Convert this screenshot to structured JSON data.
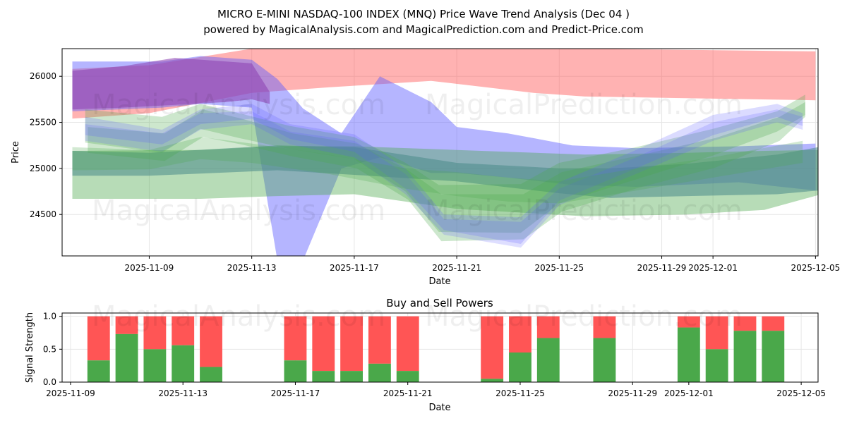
{
  "title_line1": "MICRO E-MINI NASDAQ-100 INDEX (MNQ) Price Wave Trend Analysis (Dec 04 )",
  "title_line2": "powered by MagicalAnalysis.com and MagicalPrediction.com and Predict-Price.com",
  "watermarks": [
    "MagicalAnalysis.com",
    "MagicalPrediction.com"
  ],
  "colors": {
    "red": "#ff5555",
    "green": "#4aa84a",
    "blue": "#5a5aff",
    "grid": "#e6e6e6"
  },
  "chart_data": [
    {
      "type": "area",
      "title": "",
      "xlabel": "Date",
      "ylabel": "Price",
      "x_tick_labels": [
        "2025-11-09",
        "2025-11-13",
        "2025-11-17",
        "2025-11-21",
        "2025-11-25",
        "2025-11-29",
        "2025-12-01",
        "2025-12-05"
      ],
      "x_tick_days": [
        3,
        7,
        11,
        15,
        19,
        23,
        25,
        29
      ],
      "x_origin": "2025-11-06",
      "xlim": [
        -0.4,
        29.1
      ],
      "ylim": [
        24050,
        26300
      ],
      "y_ticks": [
        24500,
        25000,
        25500,
        26000
      ],
      "bands": [
        {
          "color": "red",
          "opacity": 0.45,
          "x": [
            0,
            3,
            7,
            10,
            14,
            18,
            20,
            29
          ],
          "upper": [
            26080,
            26120,
            26300,
            26300,
            26300,
            26300,
            26300,
            26270
          ],
          "lower": [
            25540,
            25600,
            25820,
            25880,
            25950,
            25820,
            25780,
            25740
          ]
        },
        {
          "color": "blue",
          "opacity": 0.45,
          "x": [
            0,
            3.5,
            5,
            7,
            8,
            9,
            10.5,
            12,
            14,
            15,
            17,
            19.5,
            22,
            26,
            29
          ],
          "upper": [
            26160,
            26160,
            26220,
            26180,
            25970,
            25650,
            25380,
            26000,
            25720,
            25450,
            25380,
            25250,
            25220,
            25240,
            25270
          ],
          "lower": [
            25620,
            25660,
            25700,
            25660,
            24000,
            24000,
            25000,
            25120,
            24950,
            24950,
            24900,
            24820,
            24800,
            24850,
            24760
          ]
        },
        {
          "color": "purple",
          "opacity": 0.55,
          "x": [
            0,
            2,
            4,
            6,
            7,
            7.7
          ],
          "upper": [
            26060,
            26110,
            26200,
            26160,
            26140,
            25830
          ],
          "lower": [
            25640,
            25660,
            25690,
            25720,
            25750,
            25700
          ]
        },
        {
          "color": "green",
          "opacity": 0.4,
          "x": [
            0,
            5,
            8,
            11,
            15,
            20,
            24,
            27,
            29.1
          ],
          "upper": [
            25190,
            25200,
            25240,
            25240,
            25200,
            25150,
            25170,
            25190,
            25200
          ],
          "lower": [
            24670,
            24670,
            24700,
            24720,
            24560,
            24480,
            24500,
            24550,
            24710
          ]
        },
        {
          "color": "teal",
          "opacity": 0.55,
          "x": [
            0,
            3,
            8,
            11,
            15,
            19,
            21,
            24,
            27.5,
            29.1
          ],
          "upper": [
            25190,
            25170,
            25250,
            25230,
            25060,
            25000,
            25000,
            25050,
            25150,
            25230
          ],
          "lower": [
            24920,
            24920,
            24980,
            24930,
            24860,
            24730,
            24680,
            24700,
            24720,
            24760
          ]
        },
        {
          "color": "green",
          "opacity": 0.28,
          "x": [
            0.5,
            3.5,
            5,
            6.5,
            8.5,
            11,
            13,
            14.3,
            17.5,
            19,
            22,
            25,
            27.5,
            28.6
          ],
          "upper": [
            25640,
            25560,
            25700,
            25600,
            25460,
            25340,
            25060,
            24820,
            24830,
            25060,
            25230,
            25430,
            25620,
            25800
          ],
          "lower": [
            25280,
            25170,
            25430,
            25330,
            25210,
            25100,
            24750,
            24310,
            24300,
            24620,
            24880,
            25140,
            25400,
            25580
          ]
        },
        {
          "color": "green",
          "opacity": 0.28,
          "x": [
            0.6,
            3.6,
            5.1,
            6.6,
            8.6,
            11.1,
            13.1,
            14.4,
            17.6,
            19.1,
            22.1,
            25.1,
            27.6,
            28.6
          ],
          "upper": [
            25450,
            25380,
            25640,
            25540,
            25380,
            25270,
            24980,
            24720,
            24720,
            24960,
            25140,
            25330,
            25560,
            25720
          ],
          "lower": [
            25170,
            25080,
            25340,
            25260,
            25130,
            25000,
            24660,
            24210,
            24230,
            24530,
            24790,
            25010,
            25300,
            25560
          ]
        },
        {
          "color": "blue",
          "opacity": 0.22,
          "x": [
            0.5,
            3.5,
            5,
            7,
            8.5,
            11,
            13,
            14.5,
            17.5,
            19,
            22,
            25,
            27.5,
            28.5
          ],
          "upper": [
            25560,
            25420,
            25640,
            25700,
            25480,
            25370,
            25000,
            24500,
            24470,
            24850,
            25200,
            25580,
            25700,
            25600
          ],
          "lower": [
            25360,
            25260,
            25480,
            25540,
            25320,
            25180,
            24780,
            24330,
            24180,
            24650,
            25000,
            25360,
            25560,
            25460
          ]
        },
        {
          "color": "blue",
          "opacity": 0.2,
          "x": [
            0.5,
            3.5,
            5,
            7,
            8.5,
            11,
            13,
            14.5,
            17.5,
            19,
            22,
            25,
            27.5,
            28.5
          ],
          "upper": [
            25480,
            25380,
            25600,
            25620,
            25400,
            25300,
            24940,
            24450,
            24420,
            24780,
            25120,
            25500,
            25640,
            25560
          ],
          "lower": [
            25300,
            25180,
            25420,
            25480,
            25260,
            25120,
            24720,
            24280,
            24140,
            24600,
            24940,
            25300,
            25500,
            25420
          ]
        },
        {
          "color": "green",
          "opacity": 0.25,
          "x": [
            0,
            3,
            5,
            7,
            10,
            13,
            15,
            17,
            19,
            22,
            25,
            28.5
          ],
          "upper": [
            25230,
            25200,
            25340,
            25270,
            25150,
            25000,
            24960,
            24900,
            24860,
            25000,
            25120,
            25300
          ],
          "lower": [
            24980,
            24990,
            25100,
            25060,
            24940,
            24780,
            24700,
            24640,
            24620,
            24760,
            24900,
            25060
          ]
        }
      ]
    },
    {
      "type": "bar",
      "title": "Buy and Sell Powers",
      "xlabel": "Date",
      "ylabel": "Signal Strength",
      "x_tick_labels": [
        "2025-11-09",
        "2025-11-13",
        "2025-11-17",
        "2025-11-21",
        "2025-11-25",
        "2025-11-29",
        "2025-12-01",
        "2025-12-05"
      ],
      "x_tick_days": [
        0,
        4,
        8,
        12,
        16,
        20,
        22,
        26
      ],
      "x_origin": "2025-11-09",
      "xlim": [
        -0.3,
        26.6
      ],
      "ylim": [
        0,
        1.05
      ],
      "y_ticks": [
        0.0,
        0.5,
        1.0
      ],
      "y_tick_labels": [
        "0.0",
        "0.5",
        "1.0"
      ],
      "bars": [
        {
          "day": 1,
          "buy": 0.33
        },
        {
          "day": 2,
          "buy": 0.73
        },
        {
          "day": 3,
          "buy": 0.5
        },
        {
          "day": 4,
          "buy": 0.56
        },
        {
          "day": 5,
          "buy": 0.23
        },
        {
          "day": 8,
          "buy": 0.33
        },
        {
          "day": 9,
          "buy": 0.17
        },
        {
          "day": 10,
          "buy": 0.17
        },
        {
          "day": 11,
          "buy": 0.28
        },
        {
          "day": 12,
          "buy": 0.17
        },
        {
          "day": 15,
          "buy": 0.05
        },
        {
          "day": 16,
          "buy": 0.45
        },
        {
          "day": 17,
          "buy": 0.67
        },
        {
          "day": 19,
          "buy": 0.67
        },
        {
          "day": 22,
          "buy": 0.83
        },
        {
          "day": 23,
          "buy": 0.5
        },
        {
          "day": 24,
          "buy": 0.78
        },
        {
          "day": 25,
          "buy": 0.78
        }
      ]
    }
  ]
}
